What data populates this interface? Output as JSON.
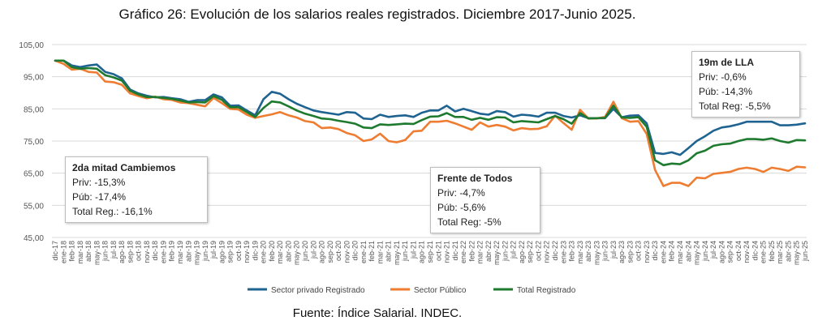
{
  "page": {
    "title": "Gráfico 26: Evolución de los salarios reales registrados. Diciembre 2017-Junio 2025.",
    "source": "Fuente: Índice Salarial. INDEC."
  },
  "annotations": [
    {
      "title": "2da mitad Cambiemos",
      "lines": [
        "Priv: -15,3%",
        "Púb: -17,4%",
        "Total Reg.: -16,1%"
      ]
    },
    {
      "title": "Frente de Todos",
      "lines": [
        "Priv: -4,7%",
        "Púb: -5,6%",
        "Total Reg: -5%"
      ]
    },
    {
      "title": "19m de LLA",
      "lines": [
        "Priv: -0,6%",
        "Púb: -14,3%",
        "Total Reg: -5,5%"
      ]
    }
  ],
  "chart_data": {
    "type": "line",
    "title": "Gráfico 26: Evolución de los salarios reales registrados. Diciembre 2017-Junio 2025.",
    "ylim": [
      45,
      105
    ],
    "yticks": [
      "45,00",
      "55,00",
      "65,00",
      "75,00",
      "85,00",
      "95,00",
      "105,00"
    ],
    "ytick_values": [
      45,
      55,
      65,
      75,
      85,
      95,
      105
    ],
    "grid": "horizontal",
    "legend": "bottom",
    "x": [
      "dic-17",
      "ene-18",
      "feb-18",
      "mar-18",
      "abr-18",
      "may-18",
      "jun-18",
      "jul-18",
      "ago-18",
      "sep-18",
      "oct-18",
      "nov-18",
      "dic-18",
      "ene-19",
      "feb-19",
      "mar-19",
      "abr-19",
      "may-19",
      "jun-19",
      "jul-19",
      "ago-19",
      "sep-19",
      "oct-19",
      "nov-19",
      "dic-19",
      "ene-20",
      "feb-20",
      "mar-20",
      "abr-20",
      "may-20",
      "jun-20",
      "jul-20",
      "ago-20",
      "sep-20",
      "oct-20",
      "nov-20",
      "dic-20",
      "ene-21",
      "feb-21",
      "mar-21",
      "abr-21",
      "may-21",
      "jun-21",
      "jul-21",
      "ago-21",
      "sep-21",
      "oct-21",
      "nov-21",
      "dic-21",
      "ene-22",
      "feb-22",
      "mar-22",
      "abr-22",
      "may-22",
      "jun-22",
      "jul-22",
      "ago-22",
      "sep-22",
      "oct-22",
      "nov-22",
      "dic-22",
      "ene-23",
      "feb-23",
      "mar-23",
      "abr-23",
      "may-23",
      "jun-23",
      "jul-23",
      "ago-23",
      "sep-23",
      "oct-23",
      "nov-23",
      "dic-23",
      "ene-24",
      "feb-24",
      "mar-24",
      "abr-24",
      "may-24",
      "jun-24",
      "jul-24",
      "ago-24",
      "sep-24",
      "oct-24",
      "nov-24",
      "dic-24",
      "ene-25",
      "feb-25",
      "mar-25",
      "abr-25",
      "may-25",
      "jun-25"
    ],
    "series": [
      {
        "name": "Sector privado Registrado",
        "color": "#1f6391",
        "values": [
          100,
          100,
          98.5,
          98,
          98.5,
          98.8,
          96.5,
          95.8,
          94.5,
          91,
          89.8,
          89.1,
          88.6,
          88.7,
          88.3,
          88,
          87.2,
          87.7,
          87.7,
          89.5,
          88.6,
          86,
          86.1,
          84.5,
          83,
          88,
          90.3,
          89.7,
          88,
          86.6,
          85.5,
          84.5,
          84,
          83.6,
          83.2,
          84,
          83.8,
          82,
          81.8,
          83.2,
          82.5,
          82.8,
          83,
          82.5,
          83.8,
          84.5,
          84.5,
          86,
          84.2,
          85,
          84.3,
          83.5,
          83.2,
          84.3,
          84,
          82.6,
          83.2,
          83,
          82.6,
          83.8,
          83.8,
          82.8,
          82.3,
          83,
          82.1,
          82.1,
          82.1,
          85,
          82.4,
          82.9,
          83,
          80.5,
          71.3,
          71,
          71.5,
          70.7,
          72.8,
          75,
          76.5,
          78.2,
          79.2,
          79.6,
          80.2,
          81,
          81,
          81,
          81,
          79.9,
          79.9,
          80.1,
          80.5
        ]
      },
      {
        "name": "Sector Público",
        "color": "#ee7d31",
        "values": [
          100,
          99,
          97.2,
          97.5,
          96.5,
          96.3,
          93.5,
          93.3,
          92.5,
          89.8,
          89,
          88.3,
          88.8,
          88,
          87.8,
          87,
          86.8,
          86.3,
          85.8,
          88.4,
          86.8,
          85,
          84.8,
          83.2,
          82.2,
          82.8,
          83.3,
          84,
          83,
          82.3,
          81.2,
          80.8,
          79,
          79.2,
          78.7,
          77.5,
          76.8,
          75,
          75.5,
          77.3,
          75,
          74.6,
          75.3,
          78,
          78.2,
          81,
          81,
          81.3,
          80.5,
          79.5,
          78.5,
          80.8,
          79.5,
          80,
          79.5,
          78.3,
          79,
          78.7,
          78.8,
          79.6,
          82.9,
          80.6,
          78.5,
          84.7,
          82,
          82,
          82.5,
          87.2,
          82.1,
          81,
          81.2,
          77.2,
          66,
          61,
          62,
          62,
          61,
          63.6,
          63.4,
          64.8,
          65.1,
          65.4,
          66.3,
          66.7,
          66.3,
          65.4,
          66.7,
          66.3,
          65.7,
          67,
          66.8
        ]
      },
      {
        "name": "Total Registrado",
        "color": "#1e7a2e",
        "values": [
          100,
          100,
          98,
          97.5,
          97.7,
          97.5,
          95.5,
          94.8,
          93.8,
          90.6,
          89.5,
          88.7,
          88.7,
          88.4,
          88.1,
          87.6,
          87,
          87.1,
          87,
          89,
          87.8,
          85.5,
          85.5,
          84,
          82.5,
          85.3,
          87.3,
          87,
          85.8,
          84.5,
          83.5,
          82.8,
          82,
          81.8,
          81.3,
          80.9,
          80.4,
          79.2,
          79,
          80.2,
          80,
          80.2,
          80.4,
          80.3,
          81.5,
          82.6,
          82.7,
          83.7,
          82.5,
          82.5,
          81.6,
          82.2,
          81.6,
          82.4,
          82.3,
          80.8,
          81.2,
          81,
          80.8,
          81.8,
          82.8,
          81.8,
          80.4,
          83.7,
          82,
          82.1,
          82.2,
          86,
          82.3,
          82.2,
          82.4,
          79.4,
          69,
          67.5,
          68,
          67.8,
          69,
          71.2,
          72,
          73.5,
          74,
          74.2,
          75,
          75.6,
          75.6,
          75.4,
          75.8,
          75,
          74.5,
          75.3,
          75.2
        ]
      }
    ]
  }
}
